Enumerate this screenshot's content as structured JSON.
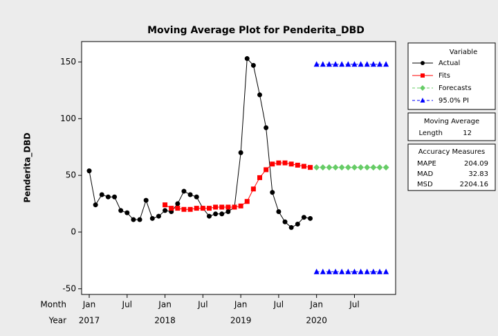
{
  "chart_data": {
    "type": "line",
    "title": "Moving Average Plot for Penderita_DBD",
    "y_label": "Penderita_DBD",
    "x_row_labels": [
      "Month",
      "Year"
    ],
    "month_labels": [
      "Jan",
      null,
      null,
      null,
      null,
      null,
      "Jul",
      null,
      null,
      null,
      null,
      null,
      "Jan",
      null,
      null,
      null,
      null,
      null,
      "Jul",
      null,
      null,
      null,
      null,
      null,
      "Jan",
      null,
      null,
      null,
      null,
      null,
      "Jul",
      null,
      null,
      null,
      null,
      null,
      "Jan",
      null,
      null,
      null,
      null,
      null,
      "Jul",
      null,
      null,
      null,
      null,
      null
    ],
    "year_labels": [
      "2017",
      null,
      null,
      null,
      null,
      null,
      null,
      null,
      null,
      null,
      null,
      null,
      "2018",
      null,
      null,
      null,
      null,
      null,
      null,
      null,
      null,
      null,
      null,
      null,
      "2019",
      null,
      null,
      null,
      null,
      null,
      null,
      null,
      null,
      null,
      null,
      null,
      "2020",
      null,
      null,
      null,
      null,
      null,
      null,
      null,
      null,
      null,
      null,
      null
    ],
    "ylim": [
      -55,
      168
    ],
    "yticks": [
      -50,
      0,
      50,
      100,
      150
    ],
    "legend_title": "Variable",
    "series": [
      {
        "name": "Actual",
        "color": "#000000",
        "marker": "circle",
        "dashed": false,
        "values": [
          54,
          24,
          33,
          31,
          31,
          19,
          17,
          11,
          11,
          28,
          12,
          14,
          19,
          18,
          25,
          36,
          33,
          31,
          21,
          14,
          16,
          16,
          18,
          22,
          70,
          153,
          147,
          121,
          92,
          35,
          18,
          9,
          4,
          7,
          13,
          12,
          null,
          null,
          null,
          null,
          null,
          null,
          null,
          null,
          null,
          null,
          null,
          null
        ]
      },
      {
        "name": "Fits",
        "color": "#ff0000",
        "marker": "square",
        "dashed": false,
        "values": [
          null,
          null,
          null,
          null,
          null,
          null,
          null,
          null,
          null,
          null,
          null,
          null,
          24,
          21,
          21,
          20,
          20,
          21,
          21,
          21,
          22,
          22,
          22,
          22,
          23,
          27,
          38,
          48,
          55,
          60,
          61,
          61,
          60,
          59,
          58,
          57,
          null,
          null,
          null,
          null,
          null,
          null,
          null,
          null,
          null,
          null,
          null,
          null
        ]
      },
      {
        "name": "Forecasts",
        "color": "#66cc66",
        "marker": "diamond",
        "dashed": true,
        "values": [
          null,
          null,
          null,
          null,
          null,
          null,
          null,
          null,
          null,
          null,
          null,
          null,
          null,
          null,
          null,
          null,
          null,
          null,
          null,
          null,
          null,
          null,
          null,
          null,
          null,
          null,
          null,
          null,
          null,
          null,
          null,
          null,
          null,
          null,
          null,
          null,
          57,
          57,
          57,
          57,
          57,
          57,
          57,
          57,
          57,
          57,
          57,
          57
        ]
      },
      {
        "name": "95.0% PI",
        "color": "#0000ff",
        "marker": "triangle",
        "dashed": true,
        "values": [
          null,
          null,
          null,
          null,
          null,
          null,
          null,
          null,
          null,
          null,
          null,
          null,
          null,
          null,
          null,
          null,
          null,
          null,
          null,
          null,
          null,
          null,
          null,
          null,
          null,
          null,
          null,
          null,
          null,
          null,
          null,
          null,
          null,
          null,
          null,
          null,
          148,
          148,
          148,
          148,
          148,
          148,
          148,
          148,
          148,
          148,
          148,
          148
        ],
        "lower": [
          null,
          null,
          null,
          null,
          null,
          null,
          null,
          null,
          null,
          null,
          null,
          null,
          null,
          null,
          null,
          null,
          null,
          null,
          null,
          null,
          null,
          null,
          null,
          null,
          null,
          null,
          null,
          null,
          null,
          null,
          null,
          null,
          null,
          null,
          null,
          null,
          -35,
          -35,
          -35,
          -35,
          -35,
          -35,
          -35,
          -35,
          -35,
          -35,
          -35,
          -35
        ]
      }
    ],
    "moving_average": {
      "title": "Moving Average",
      "label": "Length",
      "value": "12"
    },
    "accuracy": {
      "title": "Accuracy Measures",
      "rows": [
        [
          "MAPE",
          "204.09"
        ],
        [
          "MAD",
          "32.83"
        ],
        [
          "MSD",
          "2204.16"
        ]
      ]
    }
  }
}
